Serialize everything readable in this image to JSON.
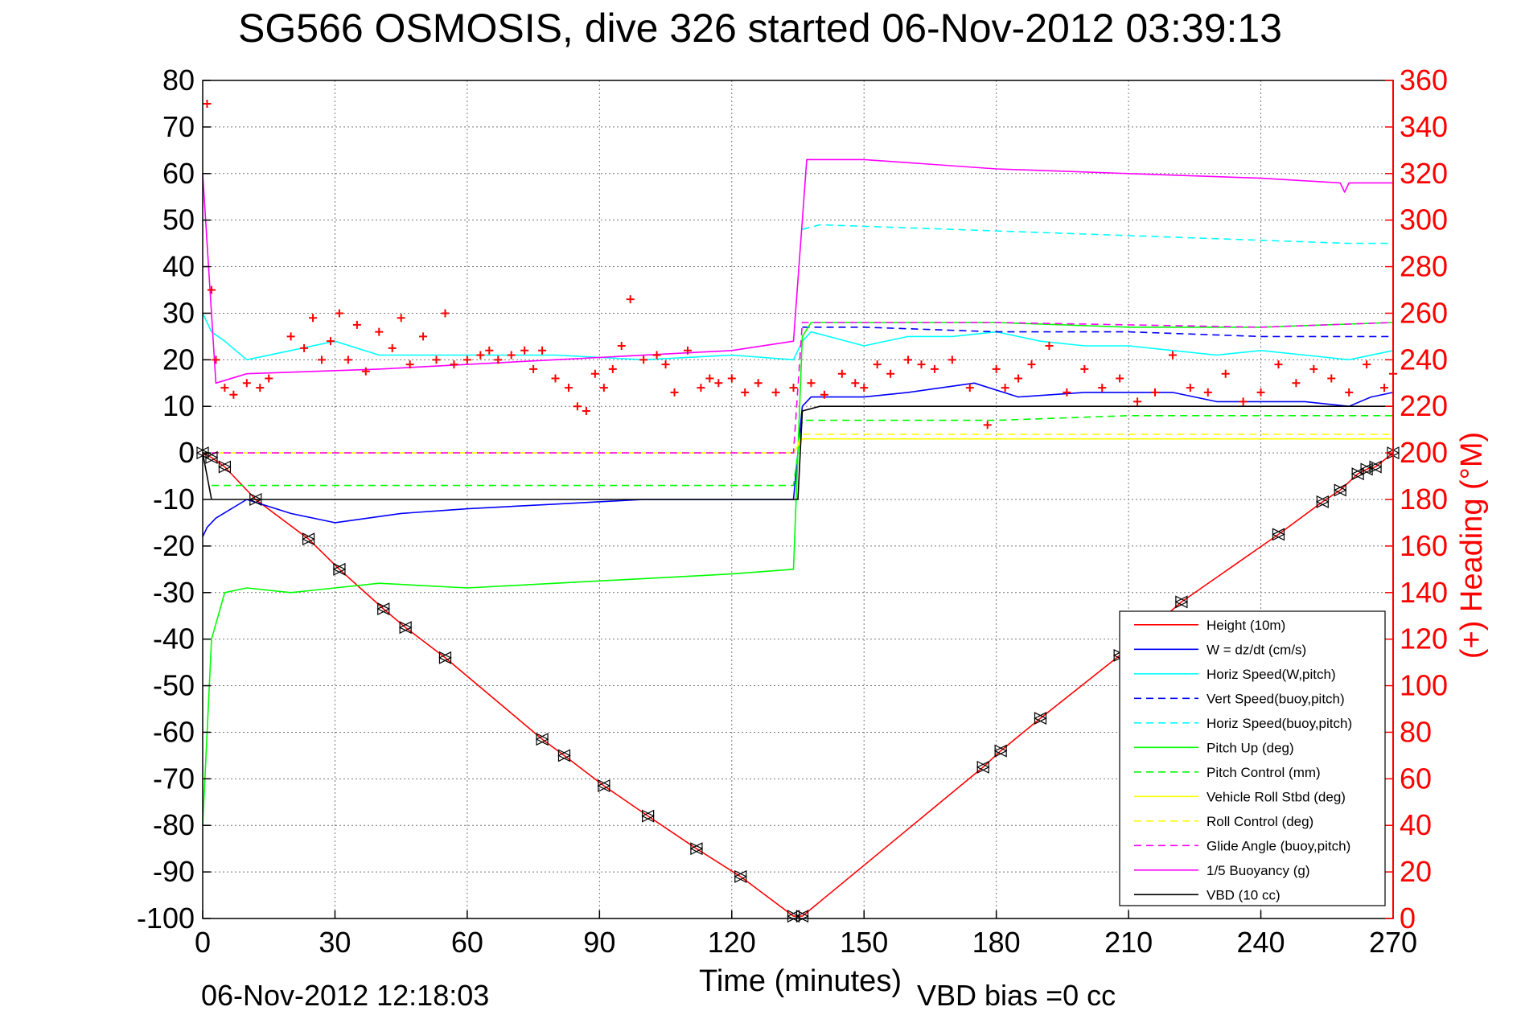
{
  "title": "SG566 OSMOSIS, dive 326 started 06-Nov-2012 03:39:13",
  "footer_left": "06-Nov-2012 12:18:03",
  "footer_right": "VBD bias =0 cc",
  "colors": {
    "height": "#ff0000",
    "w": "#0000ff",
    "horiz_speed": "#00ffff",
    "pitch": "#00ff00",
    "roll": "#ffff00",
    "glide": "#ff00ff",
    "vbd": "#000000",
    "heading": "#ff0000"
  },
  "chart_data": {
    "type": "line",
    "title": "SG566 OSMOSIS, dive 326 started 06-Nov-2012 03:39:13",
    "xlabel": "Time (minutes)",
    "ylabel": "",
    "y2label": "(+) Heading (°M)",
    "xlim": [
      0,
      270
    ],
    "ylim": [
      -100,
      80
    ],
    "y2lim": [
      0,
      360
    ],
    "xticks": [
      0,
      30,
      60,
      90,
      120,
      150,
      180,
      210,
      240,
      270
    ],
    "yticks": [
      80,
      70,
      60,
      50,
      40,
      30,
      20,
      10,
      0,
      -10,
      -20,
      -30,
      -40,
      -50,
      -60,
      -70,
      -80,
      -90,
      -100
    ],
    "y2ticks": [
      360,
      340,
      320,
      300,
      280,
      260,
      240,
      220,
      200,
      180,
      160,
      140,
      120,
      100,
      80,
      60,
      40,
      20,
      0
    ],
    "grid": true,
    "legend_position": "bottom-right",
    "series": [
      {
        "name": "Height (10m)",
        "style": "solid",
        "color": "#ff0000",
        "x": [
          0,
          2,
          5,
          12,
          24,
          31,
          41,
          46,
          55,
          77,
          82,
          91,
          101,
          112,
          122,
          134,
          136,
          177,
          181,
          190,
          208,
          222,
          244,
          254,
          258,
          262,
          264,
          266,
          270
        ],
        "y": [
          0,
          -1,
          -3,
          -10,
          -18.5,
          -25,
          -33.5,
          -37.5,
          -44,
          -61.5,
          -65,
          -71.5,
          -78,
          -85,
          -91,
          -99.5,
          -99.5,
          -67.5,
          -64,
          -57,
          -43.5,
          -32,
          -17.5,
          -10.5,
          -8,
          -4.5,
          -3.5,
          -3,
          0
        ]
      },
      {
        "name": "W = dz/dt (cm/s)",
        "style": "solid",
        "color": "#0000ff",
        "x": [
          0,
          1,
          3,
          10,
          20,
          30,
          45,
          60,
          80,
          100,
          120,
          134,
          136,
          138,
          150,
          160,
          175,
          185,
          200,
          210,
          220,
          230,
          240,
          250,
          260,
          265,
          270
        ],
        "y": [
          -18,
          -16,
          -14,
          -10,
          -13,
          -15,
          -13,
          -12,
          -11,
          -10,
          -10,
          -10,
          10,
          12,
          12,
          13,
          15,
          12,
          13,
          13,
          13,
          11,
          11,
          11,
          10,
          12,
          13
        ]
      },
      {
        "name": "Horiz Speed(W,pitch)",
        "style": "solid",
        "color": "#00ffff",
        "x": [
          0,
          2,
          5,
          10,
          20,
          30,
          40,
          60,
          80,
          100,
          120,
          134,
          136,
          138,
          150,
          160,
          170,
          180,
          190,
          200,
          210,
          220,
          230,
          240,
          250,
          260,
          270
        ],
        "y": [
          30,
          26,
          24,
          20,
          22,
          24,
          21,
          21,
          21,
          20,
          21,
          20,
          24,
          26,
          23,
          25,
          25,
          26,
          24,
          23,
          23,
          22,
          21,
          22,
          21,
          20,
          22
        ]
      },
      {
        "name": "Vert Speed(buoy,pitch)",
        "style": "dashed",
        "color": "#0000ff",
        "x": [
          136,
          150,
          180,
          210,
          240,
          270
        ],
        "y": [
          27,
          27,
          26,
          26,
          25,
          25
        ]
      },
      {
        "name": "Horiz Speed(buoy,pitch)",
        "style": "dashed",
        "color": "#00ffff",
        "x": [
          136,
          140,
          170,
          200,
          230,
          260,
          270
        ],
        "y": [
          48,
          49,
          48,
          47,
          46,
          45,
          45
        ]
      },
      {
        "name": "Pitch Up (deg)",
        "style": "solid",
        "color": "#00ff00",
        "x": [
          0,
          2,
          5,
          10,
          20,
          40,
          60,
          80,
          100,
          120,
          134,
          136,
          138,
          150,
          180,
          210,
          240,
          270
        ],
        "y": [
          -80,
          -40,
          -30,
          -29,
          -30,
          -28,
          -29,
          -28,
          -27,
          -26,
          -25,
          25,
          28,
          28,
          28,
          27,
          27,
          28
        ]
      },
      {
        "name": "Pitch Control (mm)",
        "style": "dashed",
        "color": "#00ff00",
        "x": [
          2,
          10,
          60,
          134,
          136,
          150,
          180,
          210,
          240,
          270
        ],
        "y": [
          -7,
          -7,
          -7,
          -7,
          7,
          7,
          7,
          8,
          8,
          8
        ]
      },
      {
        "name": "Vehicle Roll Stbd (deg)",
        "style": "solid",
        "color": "#ffff00",
        "x": [
          2,
          10,
          60,
          120,
          134,
          136,
          150,
          180,
          210,
          240,
          270
        ],
        "y": [
          0,
          0,
          0,
          0,
          0,
          3,
          3,
          3,
          3,
          3,
          3
        ]
      },
      {
        "name": "Roll Control (deg)",
        "style": "dashed",
        "color": "#ffff00",
        "x": [
          2,
          60,
          134,
          136,
          180,
          240,
          270
        ],
        "y": [
          0,
          0,
          0,
          4,
          4,
          4,
          4
        ]
      },
      {
        "name": "Glide Angle (buoy,pitch)",
        "style": "dashed",
        "color": "#ff00ff",
        "x": [
          2,
          60,
          134,
          136,
          180,
          240,
          270
        ],
        "y": [
          0,
          0,
          0,
          28,
          28,
          27,
          28
        ]
      },
      {
        "name": "1/5 Buoyancy (g)",
        "style": "solid",
        "color": "#ff00ff",
        "x": [
          0,
          3,
          10,
          40,
          80,
          120,
          134,
          137,
          150,
          180,
          210,
          240,
          258,
          259,
          260,
          270
        ],
        "y": [
          60,
          15,
          17,
          18,
          20,
          22,
          24,
          63,
          63,
          61,
          60,
          59,
          58,
          56,
          58,
          58
        ]
      },
      {
        "name": "VBD (10 cc)",
        "style": "solid",
        "color": "#000000",
        "x": [
          0,
          2,
          5,
          134,
          135,
          136,
          140,
          270
        ],
        "y": [
          0,
          -10,
          -10,
          -10,
          -10,
          9,
          10,
          10
        ]
      }
    ],
    "heading_series": {
      "name": "(+) Heading (°M)",
      "marker": "+",
      "color": "#ff0000",
      "x": [
        1,
        2,
        3,
        5,
        7,
        10,
        13,
        15,
        20,
        23,
        25,
        27,
        29,
        31,
        33,
        35,
        37,
        40,
        43,
        45,
        47,
        50,
        53,
        55,
        57,
        60,
        63,
        65,
        67,
        70,
        73,
        75,
        77,
        80,
        83,
        85,
        87,
        89,
        91,
        93,
        95,
        97,
        100,
        103,
        105,
        107,
        110,
        113,
        115,
        117,
        120,
        123,
        126,
        130,
        134,
        138,
        141,
        145,
        148,
        150,
        153,
        156,
        160,
        163,
        166,
        170,
        174,
        178,
        180,
        182,
        185,
        188,
        192,
        196,
        200,
        204,
        208,
        212,
        216,
        220,
        224,
        228,
        232,
        236,
        240,
        244,
        248,
        252,
        256,
        260,
        264,
        268,
        270
      ],
      "y": [
        350,
        270,
        240,
        228,
        225,
        230,
        228,
        232,
        250,
        245,
        258,
        240,
        248,
        260,
        240,
        255,
        235,
        252,
        245,
        258,
        238,
        250,
        240,
        260,
        238,
        240,
        242,
        244,
        240,
        242,
        244,
        236,
        244,
        232,
        228,
        220,
        218,
        234,
        228,
        236,
        246,
        266,
        240,
        242,
        238,
        226,
        244,
        228,
        232,
        230,
        232,
        226,
        230,
        226,
        228,
        230,
        225,
        234,
        230,
        228,
        238,
        234,
        240,
        238,
        236,
        240,
        228,
        212,
        236,
        228,
        232,
        238,
        246,
        226,
        236,
        228,
        232,
        222,
        226,
        242,
        228,
        226,
        234,
        222,
        226,
        238,
        230,
        236,
        232,
        226,
        238,
        228,
        234
      ]
    }
  }
}
